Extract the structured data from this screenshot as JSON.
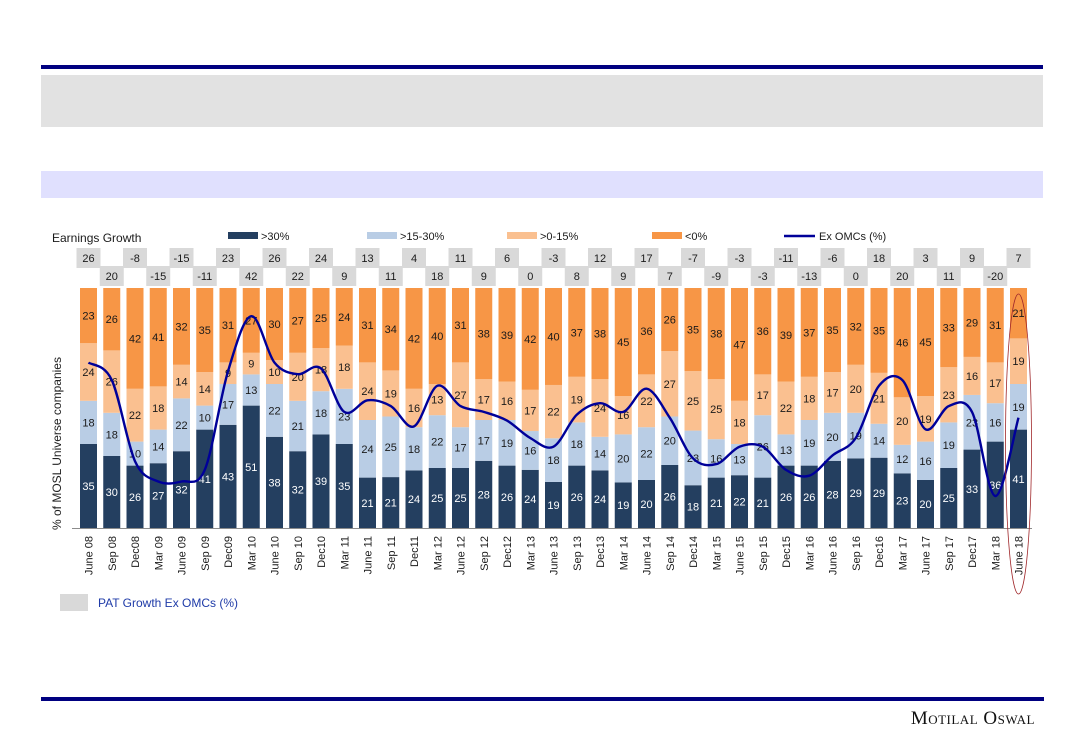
{
  "page": {
    "brand": "Motilal Oswal",
    "colors": {
      "rule": "#000080",
      "header_box": "#e2e2e2",
      "subheader_box": "#e0e0fe"
    }
  },
  "chart_data": {
    "type": "bar",
    "stacked": true,
    "title": "Earnings Growth",
    "xlabel": "",
    "ylabel": "% of MOSL Universe companies",
    "ylim": [
      0,
      100
    ],
    "secondary_ylabel": "",
    "categories": [
      "June 08",
      "Sep 08",
      "Dec08",
      "Mar 09",
      "June 09",
      "Sep 09",
      "Dec09",
      "Mar 10",
      "June 10",
      "Sep 10",
      "Dec10",
      "Mar 11",
      "June 11",
      "Sep 11",
      "Dec11",
      "Mar 12",
      "June 12",
      "Sep 12",
      "Dec12",
      "Mar 13",
      "June 13",
      "Sep 13",
      "Dec13",
      "Mar 14",
      "June 14",
      "Sep 14",
      "Dec14",
      "Mar 15",
      "June 15",
      "Sep 15",
      "Dec15",
      "Mar 16",
      "June 16",
      "Sep 16",
      "Dec16",
      "Mar 17",
      "June 17",
      "Sep 17",
      "Dec17",
      "Mar 18",
      "June 18"
    ],
    "series": [
      {
        "name": ">30%",
        "color": "#243f60",
        "label_color": "#ffffff",
        "values": [
          35,
          30,
          26,
          27,
          32,
          41,
          43,
          51,
          38,
          32,
          39,
          35,
          21,
          21,
          24,
          25,
          25,
          28,
          26,
          24,
          19,
          26,
          24,
          19,
          20,
          26,
          18,
          21,
          22,
          21,
          26,
          26,
          28,
          29,
          29,
          23,
          20,
          25,
          33,
          36,
          41
        ]
      },
      {
        "name": ">15-30%",
        "color": "#b9cde5",
        "label_color": "#1a1a1a",
        "values": [
          18,
          18,
          10,
          14,
          22,
          10,
          17,
          13,
          22,
          21,
          18,
          23,
          24,
          25,
          18,
          22,
          17,
          17,
          19,
          16,
          18,
          18,
          14,
          20,
          22,
          20,
          23,
          16,
          13,
          26,
          13,
          19,
          20,
          19,
          14,
          12,
          16,
          19,
          23,
          16,
          19
        ]
      },
      {
        "name": ">0-15%",
        "color": "#fac090",
        "label_color": "#1a1a1a",
        "values": [
          24,
          26,
          22,
          18,
          14,
          14,
          9,
          9,
          10,
          20,
          18,
          18,
          24,
          19,
          16,
          13,
          27,
          17,
          16,
          17,
          22,
          19,
          24,
          16,
          22,
          27,
          25,
          25,
          18,
          17,
          22,
          18,
          17,
          20,
          21,
          20,
          19,
          23,
          16,
          17,
          19
        ]
      },
      {
        "name": "<0%",
        "color": "#f79646",
        "label_color": "#1a1a1a",
        "values": [
          23,
          26,
          42,
          41,
          32,
          35,
          31,
          27,
          30,
          27,
          25,
          24,
          31,
          34,
          42,
          40,
          31,
          38,
          39,
          42,
          40,
          37,
          38,
          45,
          36,
          26,
          35,
          38,
          47,
          36,
          39,
          37,
          35,
          32,
          35,
          46,
          45,
          33,
          29,
          31,
          21
        ]
      }
    ],
    "line_series": {
      "name": "Ex OMCs (%)",
      "color": "#000099",
      "values": [
        26,
        20,
        -8,
        -15,
        -15,
        -11,
        23,
        42,
        26,
        22,
        24,
        9,
        13,
        11,
        4,
        18,
        11,
        9,
        6,
        0,
        -3,
        8,
        12,
        9,
        17,
        7,
        -7,
        -9,
        -3,
        -3,
        -11,
        -13,
        -6,
        0,
        18,
        20,
        3,
        11,
        9,
        -20,
        7
      ]
    },
    "pat_growth_labels": {
      "name": "PAT Growth Ex OMCs (%)",
      "box_color": "#d9d9d9",
      "values": [
        26,
        20,
        -8,
        -15,
        -15,
        -11,
        23,
        42,
        26,
        22,
        24,
        9,
        13,
        11,
        4,
        18,
        11,
        9,
        6,
        0,
        -3,
        8,
        12,
        9,
        17,
        7,
        -7,
        -9,
        -3,
        -3,
        -11,
        -13,
        -6,
        0,
        18,
        20,
        3,
        11,
        9,
        -20,
        7
      ]
    },
    "legend": {
      "placement": "top",
      "items": [
        ">30%",
        ">15-30%",
        ">0-15%",
        "<0%",
        "Ex OMCs (%)"
      ]
    },
    "bottom_legend": "PAT Growth Ex OMCs (%)",
    "highlight": "June 18",
    "grid": false
  }
}
